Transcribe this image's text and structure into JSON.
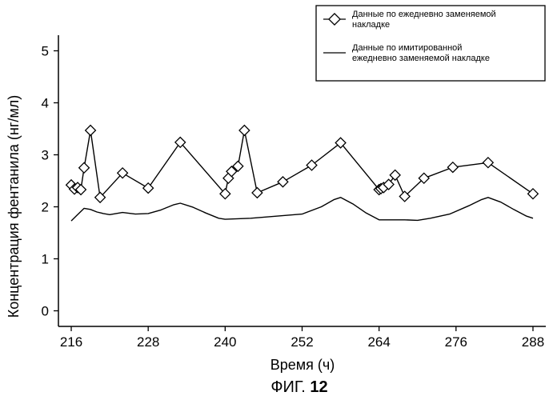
{
  "figure_caption": {
    "prefix": "ФИГ.",
    "number": "12"
  },
  "chart_data": {
    "type": "line",
    "title": "",
    "xlabel": "Время (ч)",
    "ylabel": "Концентрация фентанила (нг/мл)",
    "xlim": [
      214,
      290
    ],
    "ylim": [
      -0.3,
      5.3
    ],
    "xticks": [
      216,
      228,
      240,
      252,
      264,
      276,
      288
    ],
    "yticks": [
      0,
      1,
      2,
      3,
      4,
      5
    ],
    "grid": false,
    "legend_position": "top-right",
    "series": [
      {
        "name": "Данные по ежедневно заменяемой накладке",
        "style": "line-with-diamond-markers",
        "color": "#000000",
        "x": [
          216,
          216.5,
          217,
          217.5,
          218,
          219,
          220.5,
          224,
          228,
          233,
          240,
          240.5,
          241,
          242,
          243,
          245,
          249,
          253.5,
          258,
          264,
          264.3,
          264.7,
          265.5,
          266.5,
          268,
          271,
          275.5,
          281,
          288
        ],
        "y": [
          2.42,
          2.34,
          2.37,
          2.33,
          2.75,
          3.47,
          2.18,
          2.65,
          2.36,
          3.24,
          2.25,
          2.55,
          2.68,
          2.78,
          3.47,
          2.27,
          2.48,
          2.8,
          3.23,
          2.33,
          2.35,
          2.37,
          2.43,
          2.61,
          2.2,
          2.55,
          2.76,
          2.85,
          2.25
        ]
      },
      {
        "name": "Данные по имитированной ежедневно заменяемой накладке",
        "style": "solid-line",
        "color": "#000000",
        "x": [
          216,
          217,
          218,
          219,
          220,
          221,
          222,
          224,
          226,
          228,
          230,
          232,
          233,
          235,
          237,
          239,
          240,
          244,
          248,
          252,
          255,
          257,
          258,
          260,
          262,
          264,
          266,
          268,
          270,
          272,
          275,
          278,
          280,
          281,
          283,
          285,
          287,
          288
        ],
        "y": [
          1.73,
          1.85,
          1.97,
          1.95,
          1.9,
          1.87,
          1.85,
          1.89,
          1.86,
          1.87,
          1.94,
          2.04,
          2.07,
          1.99,
          1.88,
          1.78,
          1.76,
          1.78,
          1.82,
          1.86,
          2.0,
          2.14,
          2.18,
          2.05,
          1.88,
          1.75,
          1.75,
          1.75,
          1.74,
          1.78,
          1.86,
          2.02,
          2.14,
          2.18,
          2.09,
          1.95,
          1.82,
          1.78
        ]
      }
    ]
  }
}
